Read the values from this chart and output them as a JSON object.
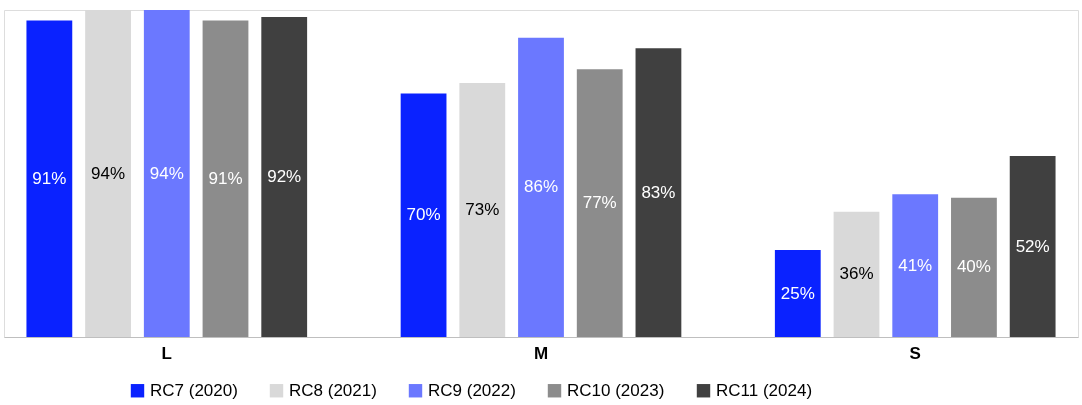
{
  "chart_data": {
    "type": "bar",
    "categories": [
      "L",
      "M",
      "S"
    ],
    "series": [
      {
        "name": "RC7 (2020)",
        "color": "#0a22ff",
        "values": [
          91,
          70,
          25
        ],
        "value_labels": [
          "91%",
          "70%",
          "25%"
        ]
      },
      {
        "name": "RC8 (2021)",
        "color": "#d9d9d9",
        "values": [
          94,
          73,
          36
        ],
        "value_labels": [
          "94%",
          "73%",
          "36%"
        ]
      },
      {
        "name": "RC9 (2022)",
        "color": "#6b78ff",
        "values": [
          94,
          86,
          41
        ],
        "value_labels": [
          "94%",
          "86%",
          "41%"
        ]
      },
      {
        "name": "RC10 (2023)",
        "color": "#8c8c8c",
        "values": [
          91,
          77,
          40
        ],
        "value_labels": [
          "91%",
          "77%",
          "40%"
        ]
      },
      {
        "name": "RC11 (2024)",
        "color": "#404040",
        "values": [
          92,
          83,
          52
        ],
        "value_labels": [
          "92%",
          "83%",
          "52%"
        ]
      }
    ],
    "legend": "bottom",
    "grid": false
  }
}
